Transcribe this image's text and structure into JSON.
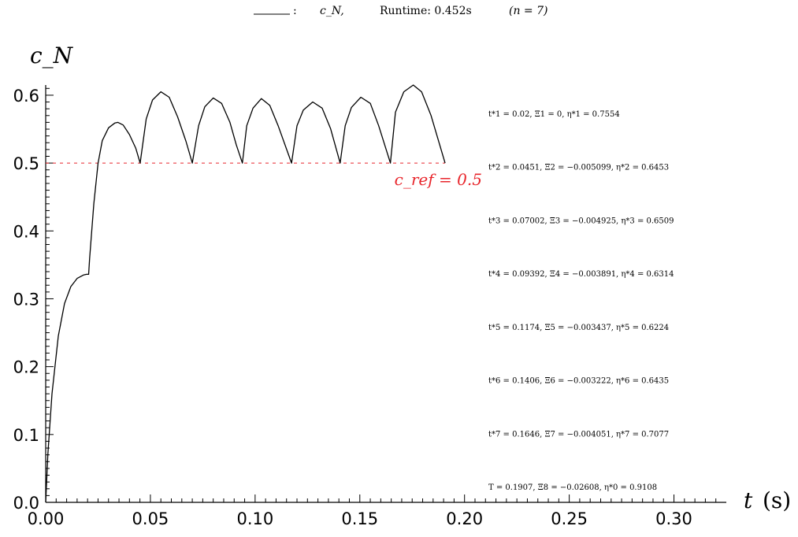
{
  "chart_data": {
    "type": "line",
    "legend": {
      "marker": ":",
      "series_label": "c_N,",
      "runtime": "Runtime: 0.452s",
      "n_label": "(n = 7)"
    },
    "ylabel": "c_N",
    "xlabel": "t",
    "xunit": "(s)",
    "xlim": [
      0,
      0.325
    ],
    "ylim": [
      0,
      0.615
    ],
    "x_ticks": [
      "0.00",
      "0.05",
      "0.10",
      "0.15",
      "0.20",
      "0.25",
      "0.30"
    ],
    "x_tick_values": [
      0,
      0.05,
      0.1,
      0.15,
      0.2,
      0.25,
      0.3
    ],
    "y_ticks": [
      "0.0",
      "0.1",
      "0.2",
      "0.3",
      "0.4",
      "0.5",
      "0.6"
    ],
    "y_tick_values": [
      0,
      0.1,
      0.2,
      0.3,
      0.4,
      0.5,
      0.6
    ],
    "reference": {
      "value": 0.5,
      "label": "c_ref = 0.5",
      "color": "#e8262c"
    },
    "series": [
      {
        "color": "#000000",
        "x": [
          0,
          0.001,
          0.003,
          0.006,
          0.009,
          0.012,
          0.015,
          0.018,
          0.0195,
          0.0205,
          0.021,
          0.023,
          0.025,
          0.027,
          0.03,
          0.033,
          0.0345,
          0.037,
          0.04,
          0.043,
          0.0451,
          0.048,
          0.051,
          0.055,
          0.059,
          0.063,
          0.067,
          0.07002,
          0.073,
          0.076,
          0.08,
          0.084,
          0.088,
          0.091,
          0.09392,
          0.096,
          0.099,
          0.103,
          0.107,
          0.111,
          0.1174,
          0.12,
          0.123,
          0.1275,
          0.132,
          0.136,
          0.1406,
          0.143,
          0.146,
          0.1505,
          0.155,
          0.159,
          0.1646,
          0.167,
          0.171,
          0.1755,
          0.1795,
          0.184,
          0.1907
        ],
        "y": [
          0,
          0.07,
          0.16,
          0.245,
          0.293,
          0.318,
          0.33,
          0.335,
          0.336,
          0.336,
          0.36,
          0.44,
          0.5,
          0.533,
          0.552,
          0.559,
          0.56,
          0.556,
          0.542,
          0.522,
          0.5,
          0.565,
          0.593,
          0.605,
          0.597,
          0.568,
          0.532,
          0.5,
          0.555,
          0.583,
          0.596,
          0.588,
          0.56,
          0.527,
          0.5,
          0.555,
          0.581,
          0.595,
          0.585,
          0.555,
          0.5,
          0.555,
          0.578,
          0.59,
          0.581,
          0.551,
          0.5,
          0.555,
          0.582,
          0.597,
          0.588,
          0.555,
          0.5,
          0.575,
          0.605,
          0.615,
          0.605,
          0.57,
          0.5
        ]
      }
    ],
    "annotations": [
      {
        "label": "t*1 = 0.02,  Ξ1 = 0,    η*1 = 0.7554",
        "y": 0.5
      },
      {
        "label": "t*2 = 0.0451,  Ξ2 = −0.005099,    η*2 = 0.6453",
        "y": 0.5
      },
      {
        "label": "t*3 = 0.07002,  Ξ3 = −0.004925,    η*3 = 0.6509",
        "y": 0.5
      },
      {
        "label": "t*4 = 0.09392,  Ξ4 = −0.003891,    η*4 = 0.6314",
        "y": 0.5
      },
      {
        "label": "t*5 = 0.1174,  Ξ5 = −0.003437,    η*5 = 0.6224",
        "y": 0.5
      },
      {
        "label": "t*6 = 0.1406,  Ξ6 = −0.003222,    η*6 = 0.6435",
        "y": 0.5
      },
      {
        "label": "t*7 = 0.1646,  Ξ7 = −0.004051,    η*7 = 0.7077",
        "y": 0.5
      },
      {
        "label": "T = 0.1907,  Ξ8 = −0.02608,    η*0 = 0.9108",
        "y": 0.5
      }
    ],
    "grid": false
  }
}
